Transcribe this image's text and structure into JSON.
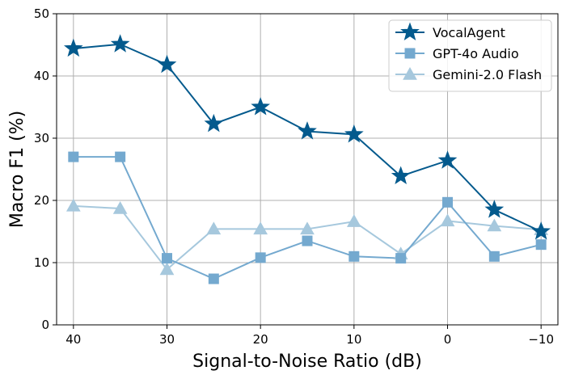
{
  "chart_data": {
    "type": "line",
    "title": "",
    "xlabel": "Signal-to-Noise Ratio (dB)",
    "ylabel": "Macro F1 (%)",
    "x": [
      40,
      35,
      30,
      25,
      20,
      15,
      10,
      5,
      0,
      -5,
      -10
    ],
    "x_ticks": [
      40,
      30,
      20,
      10,
      0,
      -10
    ],
    "x_tick_labels": [
      "40",
      "30",
      "20",
      "10",
      "0",
      "−10"
    ],
    "y_ticks": [
      0,
      10,
      20,
      30,
      40,
      50
    ],
    "y_tick_labels": [
      "0",
      "10",
      "20",
      "30",
      "40",
      "50"
    ],
    "xlim": [
      41.8,
      -11.8
    ],
    "ylim": [
      0,
      50
    ],
    "x_reversed": true,
    "grid": true,
    "legend_position": "top-right",
    "series": [
      {
        "name": "VocalAgent",
        "color": "#045a8d",
        "marker": "star",
        "values": [
          44.4,
          45.1,
          41.8,
          32.3,
          35.0,
          31.1,
          30.6,
          23.9,
          26.4,
          18.5,
          15.0
        ]
      },
      {
        "name": "GPT-4o Audio",
        "color": "#74a9cf",
        "marker": "square",
        "values": [
          27.0,
          27.0,
          10.7,
          7.4,
          10.8,
          13.5,
          11.0,
          10.7,
          19.7,
          11.0,
          12.9
        ]
      },
      {
        "name": "Gemini-2.0 Flash",
        "color": "#a6c8dd",
        "marker": "triangle",
        "values": [
          19.1,
          18.7,
          8.9,
          15.4,
          15.4,
          15.4,
          16.6,
          11.4,
          16.7,
          15.9,
          15.3
        ]
      }
    ]
  }
}
